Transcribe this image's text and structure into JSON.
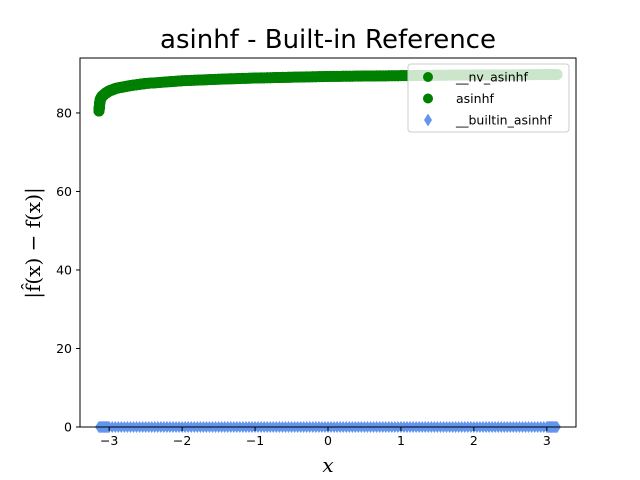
{
  "chart_data": {
    "type": "scatter",
    "title": "asinhf - Built-in Reference",
    "xlabel": "x",
    "ylabel": "|f̂(x) − f(x)|",
    "xlim": [
      -3.4,
      3.4
    ],
    "ylim": [
      0,
      94
    ],
    "xticks": [
      -3,
      -2,
      -1,
      0,
      1,
      2,
      3
    ],
    "xtick_labels": [
      "−3",
      "−2",
      "−1",
      "0",
      "1",
      "2",
      "3"
    ],
    "yticks": [
      0,
      20,
      40,
      60,
      80
    ],
    "ytick_labels": [
      "0",
      "20",
      "40",
      "60",
      "80"
    ],
    "legend_position": "top-right",
    "series": [
      {
        "name": "__nv_asinhf",
        "marker": "circle",
        "color": "#008000",
        "x": [
          -3.14,
          -3.13,
          -3.12,
          -3.1,
          -3.05,
          -3.0,
          -2.9,
          -2.7,
          -2.5,
          -2.0,
          -1.5,
          -1.0,
          -0.5,
          0.0,
          0.5,
          1.0,
          1.5,
          2.0,
          2.5,
          3.0,
          3.14
        ],
        "y": [
          80.5,
          82.5,
          83.5,
          84.2,
          85.0,
          85.6,
          86.3,
          87.0,
          87.5,
          88.2,
          88.6,
          88.9,
          89.1,
          89.3,
          89.4,
          89.5,
          89.6,
          89.7,
          89.7,
          89.8,
          89.8
        ]
      },
      {
        "name": "asinhf",
        "marker": "circle",
        "color": "#008000",
        "x": [
          -3.14,
          -3.13,
          -3.12,
          -3.1,
          -3.05,
          -3.0,
          -2.9,
          -2.7,
          -2.5,
          -2.0,
          -1.5,
          -1.0,
          -0.5,
          0.0,
          0.5,
          1.0,
          1.5,
          2.0,
          2.5,
          3.0,
          3.14
        ],
        "y": [
          80.5,
          82.5,
          83.5,
          84.2,
          85.0,
          85.6,
          86.3,
          87.0,
          87.5,
          88.2,
          88.6,
          88.9,
          89.1,
          89.3,
          89.4,
          89.5,
          89.6,
          89.7,
          89.7,
          89.8,
          89.8
        ]
      },
      {
        "name": "__builtin_asinhf",
        "marker": "thin_diamond",
        "color": "#6495ED",
        "x": [
          -3.14,
          -3.0,
          -2.5,
          -2.0,
          -1.5,
          -1.0,
          -0.5,
          0.0,
          0.5,
          1.0,
          1.5,
          2.0,
          2.5,
          3.0,
          3.14
        ],
        "y": [
          0,
          0,
          0,
          0,
          0,
          0,
          0,
          0,
          0,
          0,
          0,
          0,
          0,
          0,
          0
        ]
      }
    ]
  }
}
